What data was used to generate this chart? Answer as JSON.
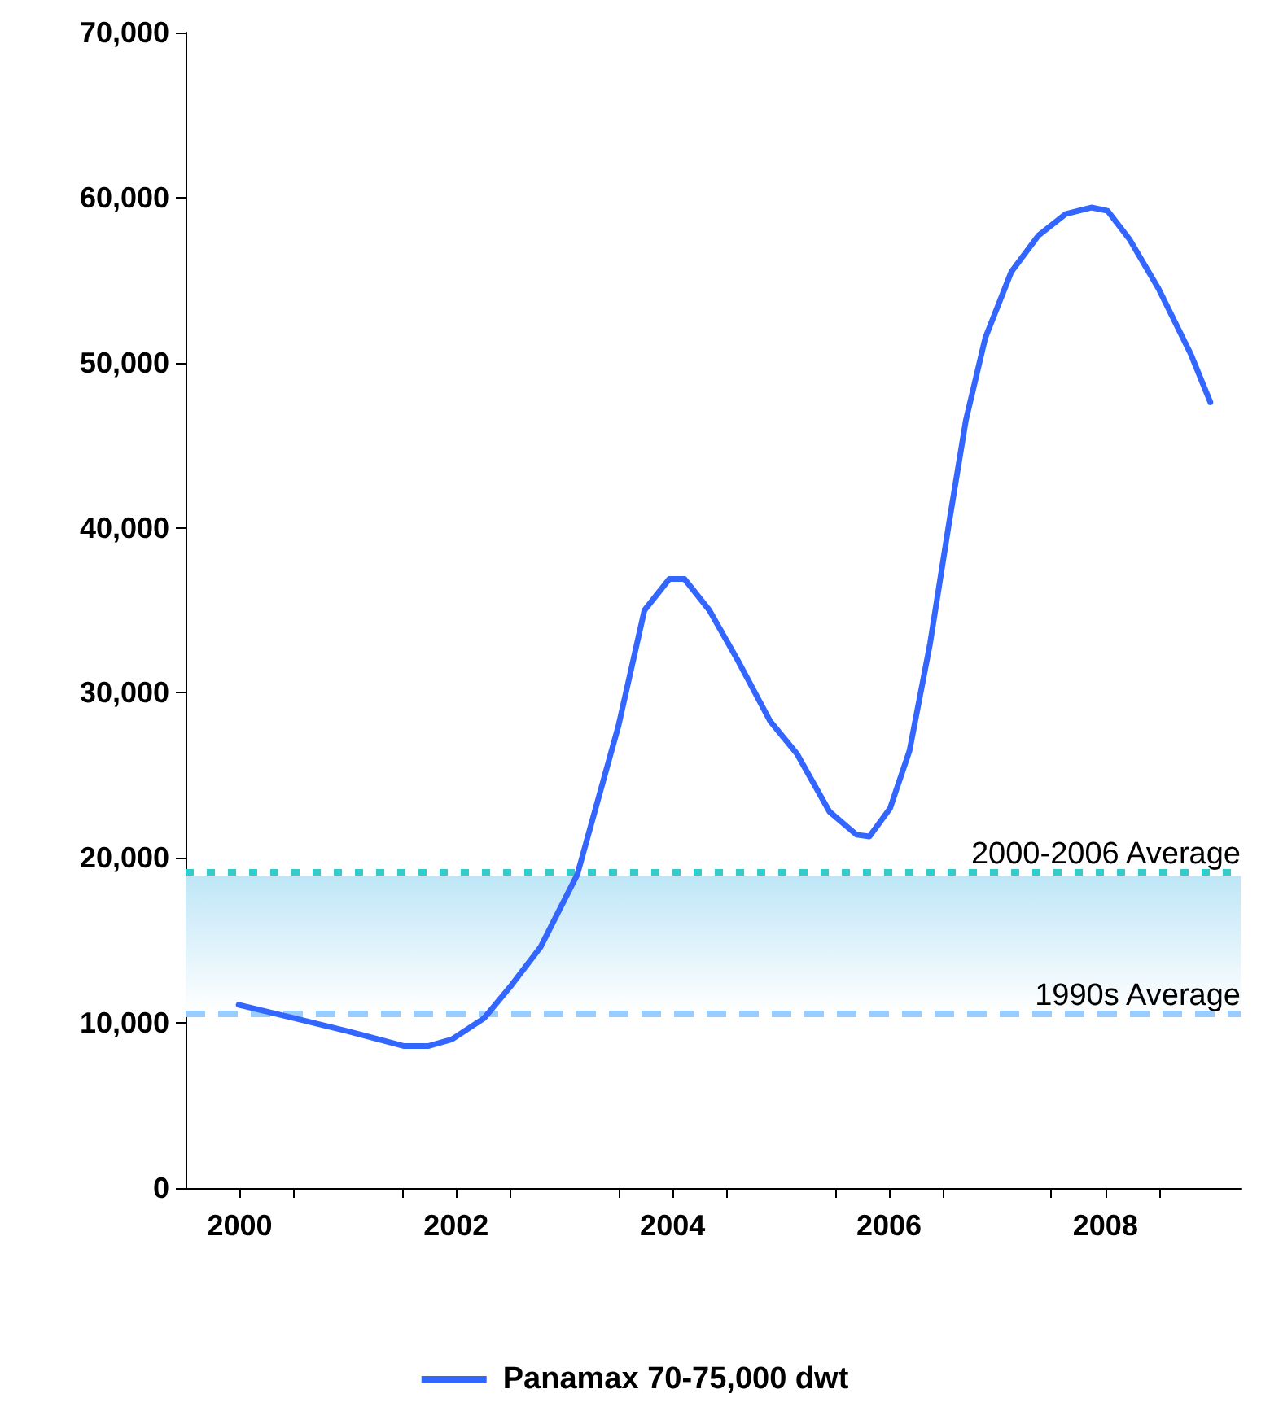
{
  "chart_data": {
    "type": "line",
    "xlim": [
      2000,
      2009.75
    ],
    "xticks": [
      {
        "value": 2000.5,
        "label": "2000"
      },
      {
        "value": 2001,
        "label": null
      },
      {
        "value": 2002,
        "label": null
      },
      {
        "value": 2002.5,
        "label": "2002"
      },
      {
        "value": 2003,
        "label": null
      },
      {
        "value": 2004,
        "label": null
      },
      {
        "value": 2004.5,
        "label": "2004"
      },
      {
        "value": 2005,
        "label": null
      },
      {
        "value": 2006,
        "label": null
      },
      {
        "value": 2006.5,
        "label": "2006"
      },
      {
        "value": 2007,
        "label": null
      },
      {
        "value": 2008,
        "label": null
      },
      {
        "value": 2008.5,
        "label": "2008"
      },
      {
        "value": 2009,
        "label": null
      }
    ],
    "ylim": [
      0,
      70000
    ],
    "yticks": [
      {
        "value": 0,
        "label": "0"
      },
      {
        "value": 10000,
        "label": "10,000"
      },
      {
        "value": 20000,
        "label": "20,000"
      },
      {
        "value": 30000,
        "label": "30,000"
      },
      {
        "value": 40000,
        "label": "40,000"
      },
      {
        "value": 50000,
        "label": "50,000"
      },
      {
        "value": 60000,
        "label": "60,000"
      },
      {
        "value": 70000,
        "label": "70,000"
      }
    ],
    "series": [
      {
        "name": "Panamax 70-75,000 dwt",
        "color": "#3366ff",
        "x": [
          2000.49,
          2001.0,
          2001.5,
          2002.02,
          2002.24,
          2002.46,
          2002.76,
          2003.0,
          2003.28,
          2003.62,
          2004.0,
          2004.24,
          2004.47,
          2004.61,
          2004.84,
          2005.1,
          2005.4,
          2005.65,
          2005.95,
          2006.2,
          2006.32,
          2006.51,
          2006.69,
          2006.88,
          2007.06,
          2007.21,
          2007.39,
          2007.63,
          2007.88,
          2008.13,
          2008.37,
          2008.52,
          2008.72,
          2008.99,
          2009.29,
          2009.47
        ],
        "values": [
          11100,
          10300,
          9500,
          8600,
          8600,
          9000,
          10300,
          12200,
          14600,
          19000,
          28000,
          35000,
          36900,
          36900,
          35000,
          32000,
          28300,
          26300,
          22800,
          21400,
          21300,
          23000,
          26500,
          33000,
          40500,
          46500,
          51500,
          55500,
          57700,
          59000,
          59400,
          59200,
          57500,
          54500,
          50500,
          47600
        ]
      }
    ],
    "ref_lines": [
      {
        "axis": "y",
        "value": 19200,
        "label": "2000-2006 Average",
        "color": "#33cccc",
        "line_style": "dotted"
      },
      {
        "axis": "y",
        "value": 10600,
        "label": "1990s Average",
        "color": "#99ccff",
        "line_style": "dashed"
      }
    ],
    "bands": [
      {
        "axis": "y",
        "from": 10600,
        "to": 18900,
        "color": "#bfe6f7"
      }
    ],
    "grid": false,
    "legend": "bottom",
    "marker": "none",
    "line_style": "solid"
  }
}
